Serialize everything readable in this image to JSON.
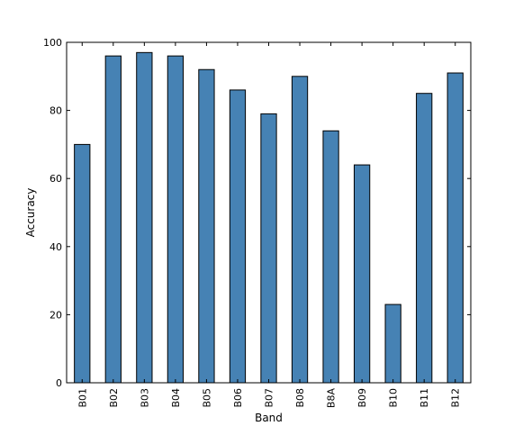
{
  "chart_data": {
    "type": "bar",
    "title": "",
    "xlabel": "Band",
    "ylabel": "Accuracy",
    "categories": [
      "B01",
      "B02",
      "B03",
      "B04",
      "B05",
      "B06",
      "B07",
      "B08",
      "B8A",
      "B09",
      "B10",
      "B11",
      "B12"
    ],
    "values": [
      70,
      96,
      97,
      96,
      92,
      86,
      79,
      90,
      74,
      64,
      23,
      85,
      91
    ],
    "ylim": [
      0,
      100
    ],
    "yticks": [
      "0",
      "20",
      "40",
      "60",
      "80",
      "100"
    ],
    "bar_color": "#4682b4",
    "edge_color": "#000000",
    "grid": false,
    "legend": "none"
  }
}
